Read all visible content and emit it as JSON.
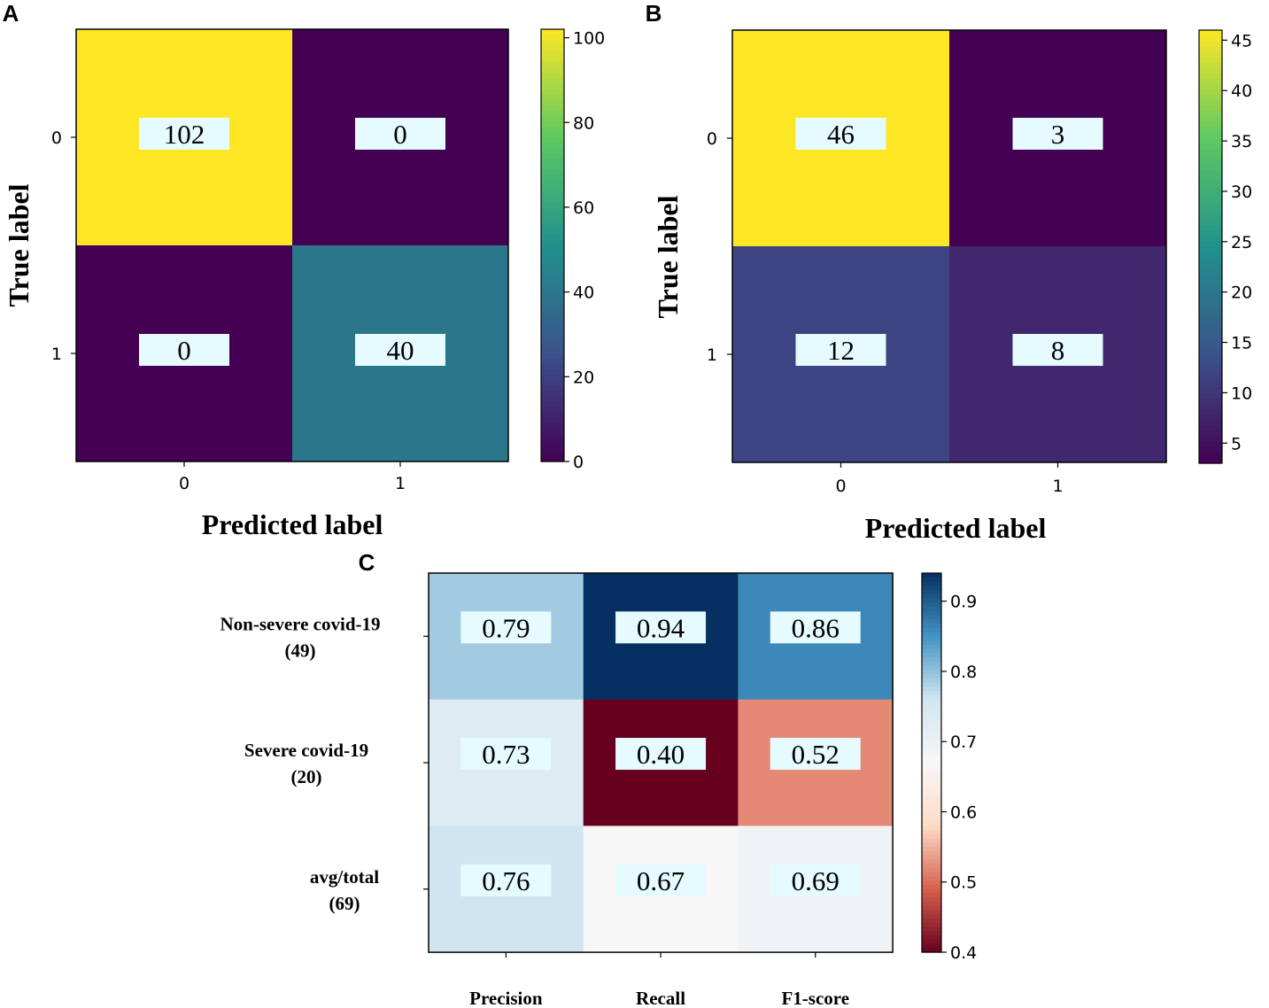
{
  "chart_data": [
    {
      "panel": "A",
      "type": "heatmap",
      "colormap": "viridis",
      "xlabel": "Predicted label",
      "ylabel": "True label",
      "x_ticks": [
        "0",
        "1"
      ],
      "y_ticks": [
        "0",
        "1"
      ],
      "matrix": [
        [
          102,
          0
        ],
        [
          0,
          40
        ]
      ],
      "cell_labels": [
        [
          "102",
          "0"
        ],
        [
          "0",
          "40"
        ]
      ],
      "color_range": [
        0,
        102
      ],
      "colorbar_ticks": [
        {
          "value": 0,
          "label": "0"
        },
        {
          "value": 20,
          "label": "20"
        },
        {
          "value": 40,
          "label": "40"
        },
        {
          "value": 60,
          "label": "60"
        },
        {
          "value": 80,
          "label": "80"
        },
        {
          "value": 100,
          "label": "100"
        }
      ]
    },
    {
      "panel": "B",
      "type": "heatmap",
      "colormap": "viridis",
      "xlabel": "Predicted label",
      "ylabel": "True label",
      "x_ticks": [
        "0",
        "1"
      ],
      "y_ticks": [
        "0",
        "1"
      ],
      "matrix": [
        [
          46,
          3
        ],
        [
          12,
          8
        ]
      ],
      "cell_labels": [
        [
          "46",
          "3"
        ],
        [
          "12",
          "8"
        ]
      ],
      "color_range": [
        3,
        46
      ],
      "colorbar_ticks": [
        {
          "value": 5,
          "label": "5"
        },
        {
          "value": 10,
          "label": "10"
        },
        {
          "value": 15,
          "label": "15"
        },
        {
          "value": 20,
          "label": "20"
        },
        {
          "value": 25,
          "label": "25"
        },
        {
          "value": 30,
          "label": "30"
        },
        {
          "value": 35,
          "label": "35"
        },
        {
          "value": 40,
          "label": "40"
        },
        {
          "value": 45,
          "label": "45"
        }
      ]
    },
    {
      "panel": "C",
      "type": "heatmap",
      "colormap": "RdBu",
      "x_ticks": [
        "Precision",
        "Recall",
        "F1-score"
      ],
      "y_ticks": [
        [
          "Non-severe covid-19",
          "(49)"
        ],
        [
          "Severe covid-19",
          "(20)"
        ],
        [
          "avg/total",
          "(69)"
        ]
      ],
      "matrix": [
        [
          0.79,
          0.94,
          0.86
        ],
        [
          0.73,
          0.4,
          0.52
        ],
        [
          0.76,
          0.67,
          0.69
        ]
      ],
      "cell_labels": [
        [
          "0.79",
          "0.94",
          "0.86"
        ],
        [
          "0.73",
          "0.40",
          "0.52"
        ],
        [
          "0.76",
          "0.67",
          "0.69"
        ]
      ],
      "color_range": [
        0.4,
        0.94
      ],
      "colorbar_ticks": [
        {
          "value": 0.4,
          "label": "0.4"
        },
        {
          "value": 0.5,
          "label": "0.5"
        },
        {
          "value": 0.6,
          "label": "0.6"
        },
        {
          "value": 0.7,
          "label": "0.7"
        },
        {
          "value": 0.8,
          "label": "0.8"
        },
        {
          "value": 0.9,
          "label": "0.9"
        }
      ]
    }
  ],
  "colors": {
    "label_box": "#e6fbff",
    "text": "#000000",
    "viridis": [
      "#440154",
      "#3b528b",
      "#21918c",
      "#5ec962",
      "#fde725"
    ],
    "rdbu": [
      "#67001f",
      "#d6604d",
      "#fddbc7",
      "#f7f7f7",
      "#d1e5f0",
      "#4393c3",
      "#053061"
    ]
  }
}
